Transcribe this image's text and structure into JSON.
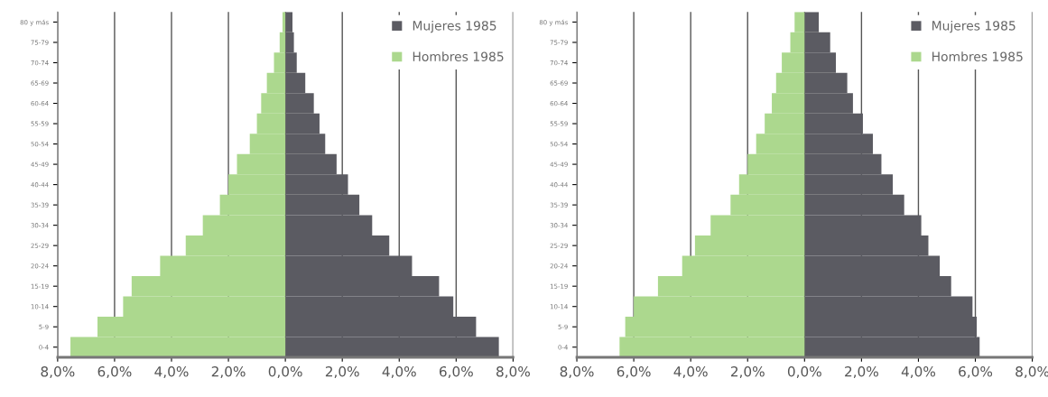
{
  "chart_data": [
    {
      "type": "bar",
      "orientation": "horizontal",
      "stacked": true,
      "categories": [
        "80 y más",
        "75-79",
        "70-74",
        "65-69",
        "60-64",
        "55-59",
        "50-54",
        "45-49",
        "40-44",
        "35-39",
        "30-34",
        "25-29",
        "20-24",
        "15-19",
        "10-14",
        "5-9",
        "0-4"
      ],
      "series": [
        {
          "name": "Mujeres 1985",
          "color": "#5b5b62",
          "values": [
            0.25,
            0.3,
            0.4,
            0.7,
            1.0,
            1.2,
            1.4,
            1.8,
            2.2,
            2.6,
            3.05,
            3.65,
            4.45,
            5.4,
            5.9,
            6.7,
            7.5
          ]
        },
        {
          "name": "Hombres 1985",
          "color": "#acd88e",
          "values": [
            -0.1,
            -0.2,
            -0.4,
            -0.65,
            -0.85,
            -1.0,
            -1.25,
            -1.7,
            -2.0,
            -2.3,
            -2.9,
            -3.5,
            -4.4,
            -5.4,
            -5.7,
            -6.6,
            -7.55
          ]
        }
      ],
      "xlim": [
        -8,
        8
      ],
      "xticks": [
        {
          "value": -8,
          "label": "8,0%"
        },
        {
          "value": -6,
          "label": "6,0%"
        },
        {
          "value": -4,
          "label": "4,0%"
        },
        {
          "value": -2,
          "label": "2,0%"
        },
        {
          "value": 0,
          "label": "0,0%"
        },
        {
          "value": 2,
          "label": "2,0%"
        },
        {
          "value": 4,
          "label": "4,0%"
        },
        {
          "value": 6,
          "label": "6,0%"
        },
        {
          "value": 8,
          "label": "8,0%"
        }
      ],
      "grid": "x",
      "legend": "top right"
    },
    {
      "type": "bar",
      "orientation": "horizontal",
      "stacked": true,
      "categories": [
        "80 y más",
        "75-79",
        "70-74",
        "65-69",
        "60-64",
        "55-59",
        "50-54",
        "45-49",
        "40-44",
        "35-39",
        "30-34",
        "25-29",
        "20-24",
        "15-19",
        "10-14",
        "5-9",
        "0-4"
      ],
      "series": [
        {
          "name": "Mujeres 1985",
          "color": "#5b5b62",
          "values": [
            0.5,
            0.9,
            1.1,
            1.5,
            1.7,
            2.05,
            2.4,
            2.7,
            3.1,
            3.5,
            4.1,
            4.35,
            4.75,
            5.15,
            5.9,
            6.05,
            6.15
          ]
        },
        {
          "name": "Hombres 1985",
          "color": "#acd88e",
          "values": [
            -0.35,
            -0.5,
            -0.8,
            -1.0,
            -1.15,
            -1.4,
            -1.7,
            -2.0,
            -2.3,
            -2.6,
            -3.3,
            -3.85,
            -4.3,
            -5.15,
            -6.0,
            -6.3,
            -6.5
          ]
        }
      ],
      "xlim": [
        -8,
        8
      ],
      "xticks": [
        {
          "value": -8,
          "label": "8,0%"
        },
        {
          "value": -6,
          "label": "6,0%"
        },
        {
          "value": -4,
          "label": "4,0%"
        },
        {
          "value": -2,
          "label": "2,0%"
        },
        {
          "value": 0,
          "label": "0,0%"
        },
        {
          "value": 2,
          "label": "2,0%"
        },
        {
          "value": 4,
          "label": "4,0%"
        },
        {
          "value": 6,
          "label": "6,0%"
        },
        {
          "value": 8,
          "label": "8,0%"
        }
      ],
      "grid": "x",
      "legend": "top right"
    }
  ]
}
